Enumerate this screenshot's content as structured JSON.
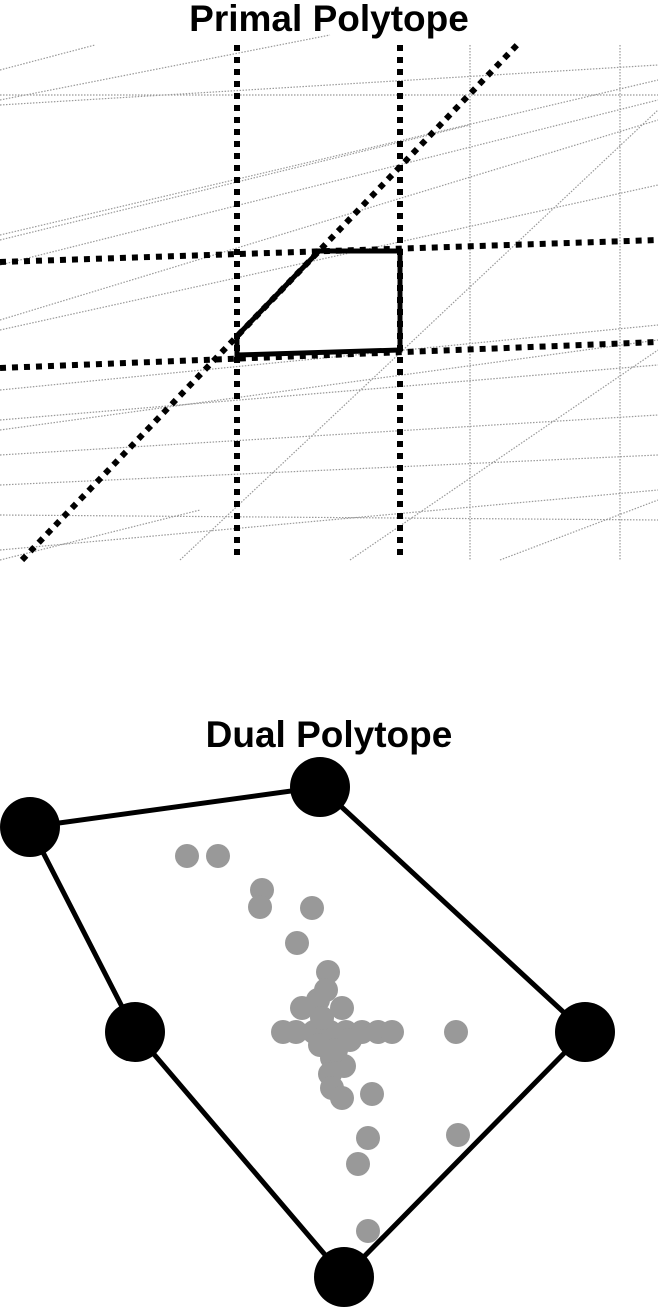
{
  "primal": {
    "title": "Primal Polytope",
    "colors": {
      "faint_line": "#888888",
      "bold_line": "#000000",
      "polygon": "#000000"
    }
  },
  "dual": {
    "title": "Dual Polytope",
    "colors": {
      "hull_vertex": "#000000",
      "hull_edge": "#000000",
      "interior_point": "#999999"
    }
  }
}
